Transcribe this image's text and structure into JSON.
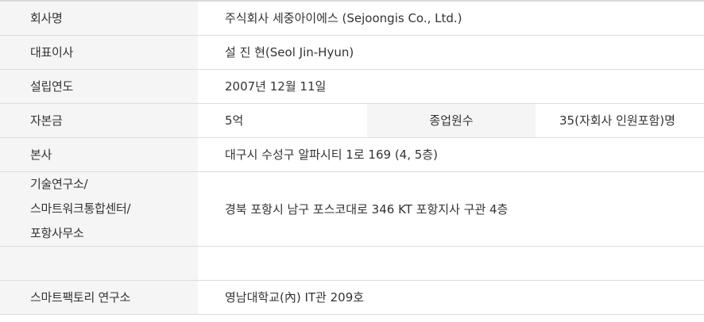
{
  "rows": [
    {
      "label": "회사명",
      "value": "주식회사 세중아이에스 (Sejoongis Co., Ltd.)"
    },
    {
      "label": "대표이사",
      "value": "설 진 현(Seol Jin-Hyun)"
    },
    {
      "label": "설립연도",
      "value": "2007년 12월 11일"
    },
    {
      "label": "자본금",
      "value": "5억",
      "label2": "종업원수",
      "value2": "35(자회사 인원포함)명"
    },
    {
      "label": "본사",
      "value": "대구시 수성구 알파시티 1로 169 (4, 5층)"
    },
    {
      "label_lines": [
        "기술연구소/",
        "스마트워크통합센터/",
        "포항사무소"
      ],
      "value": "경북 포항시 남구 포스코대로 346 KT 포항지사 구관 4층"
    },
    {
      "label": "",
      "value": ""
    },
    {
      "label": "스마트팩토리 연구소",
      "value": "영남대학교(內) IT관 209호"
    }
  ]
}
